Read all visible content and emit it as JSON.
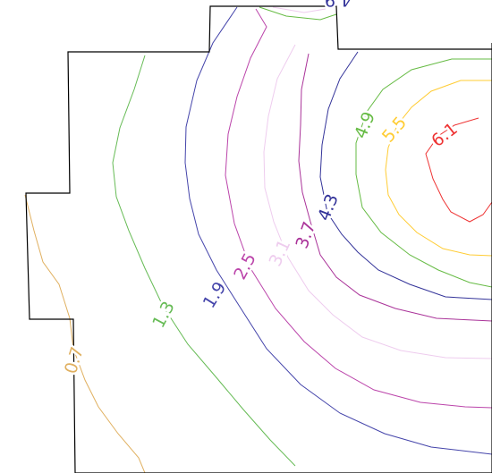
{
  "chart_data": {
    "type": "contour",
    "title": "",
    "xlabel": "",
    "ylabel": "",
    "grid": false,
    "legend": "none",
    "levels": [
      {
        "value": 0.7,
        "label": "0.7",
        "color": "#e0b060"
      },
      {
        "value": 1.3,
        "label": "1.3",
        "color": "#66bb55"
      },
      {
        "value": 1.9,
        "label": "1.9",
        "color": "#4444aa"
      },
      {
        "value": 2.5,
        "label": "2.5",
        "color": "#bb44aa"
      },
      {
        "value": 3.1,
        "label": "3.1",
        "color": "#eeccee"
      },
      {
        "value": 3.7,
        "label": "3.7",
        "color": "#aa3399"
      },
      {
        "value": 4.3,
        "label": "4.3",
        "color": "#333399"
      },
      {
        "value": 4.9,
        "label": "4.9",
        "color": "#66bb44"
      },
      {
        "value": 5.5,
        "label": "5.5",
        "color": "#ffcc33"
      },
      {
        "value": 6.1,
        "label": "6.1",
        "color": "#ee3333"
      }
    ]
  }
}
